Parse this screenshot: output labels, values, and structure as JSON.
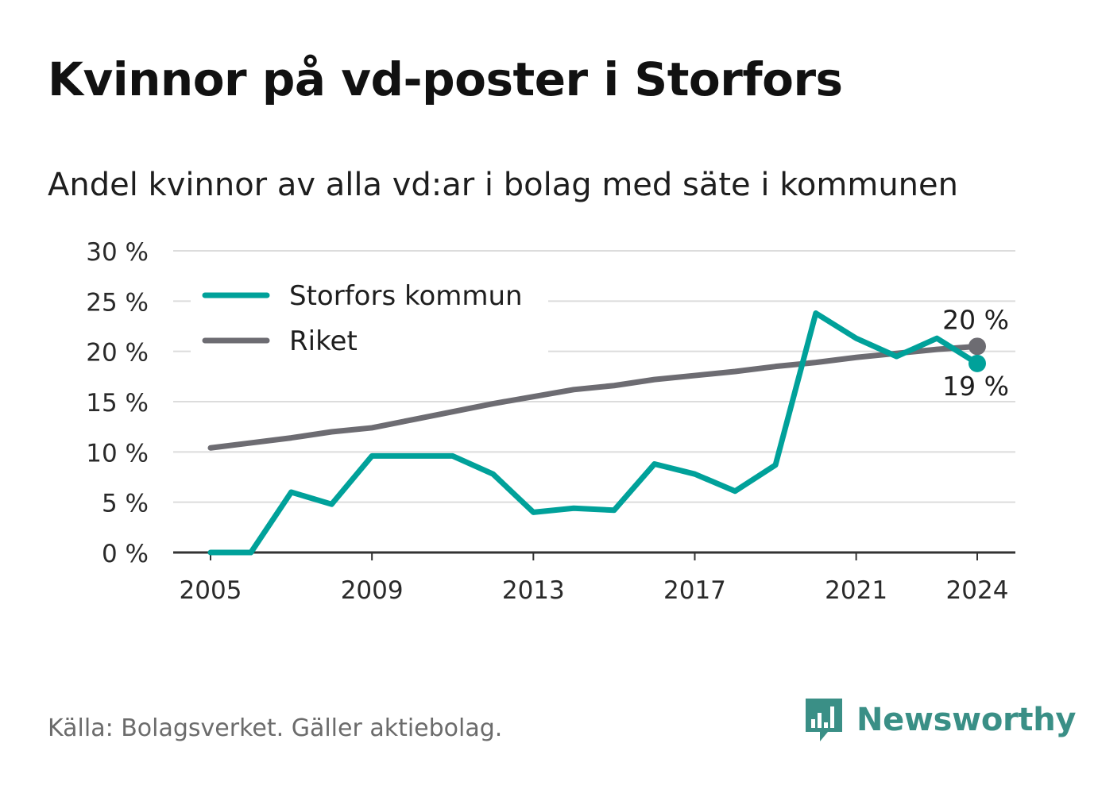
{
  "title": "Kvinnor på vd-poster i Storfors",
  "subtitle": "Andel kvinnor av alla vd:ar i bolag med säte i kommunen",
  "source": "Källa: Bolagsverket. Gäller aktiebolag.",
  "brand": {
    "name": "Newsworthy",
    "logo_icon": "bar-chart-speech-bubble-icon"
  },
  "colors": {
    "storfors": "#00a19a",
    "riket": "#6d6c72",
    "grid": "#dcdcdc",
    "axis": "#333333",
    "brand": "#3a8f86"
  },
  "chart_data": {
    "type": "line",
    "title": "Kvinnor på vd-poster i Storfors",
    "subtitle": "Andel kvinnor av alla vd:ar i bolag med säte i kommunen",
    "x": [
      2005,
      2006,
      2007,
      2008,
      2009,
      2010,
      2011,
      2012,
      2013,
      2014,
      2015,
      2016,
      2017,
      2018,
      2019,
      2020,
      2021,
      2022,
      2023,
      2024
    ],
    "series": [
      {
        "name": "Storfors kommun",
        "color": "#00a19a",
        "values": [
          0,
          0,
          6.0,
          4.8,
          9.6,
          9.6,
          9.6,
          7.8,
          4.0,
          4.4,
          4.2,
          8.8,
          7.8,
          6.1,
          8.7,
          23.8,
          21.3,
          19.5,
          21.3,
          18.8
        ],
        "end_label": "19 %"
      },
      {
        "name": "Riket",
        "color": "#6d6c72",
        "values": [
          10.4,
          10.9,
          11.4,
          12.0,
          12.4,
          13.2,
          14.0,
          14.8,
          15.5,
          16.2,
          16.6,
          17.2,
          17.6,
          18.0,
          18.5,
          18.9,
          19.4,
          19.8,
          20.2,
          20.5
        ],
        "end_label": "20 %"
      }
    ],
    "x_ticks": [
      "2005",
      "2009",
      "2013",
      "2017",
      "2021",
      "2024"
    ],
    "y_ticks": [
      "0 %",
      "5 %",
      "10 %",
      "15 %",
      "20 %",
      "25 %",
      "30 %"
    ],
    "ylim": [
      0,
      30
    ],
    "grid": true,
    "legend_position": "top-left"
  }
}
